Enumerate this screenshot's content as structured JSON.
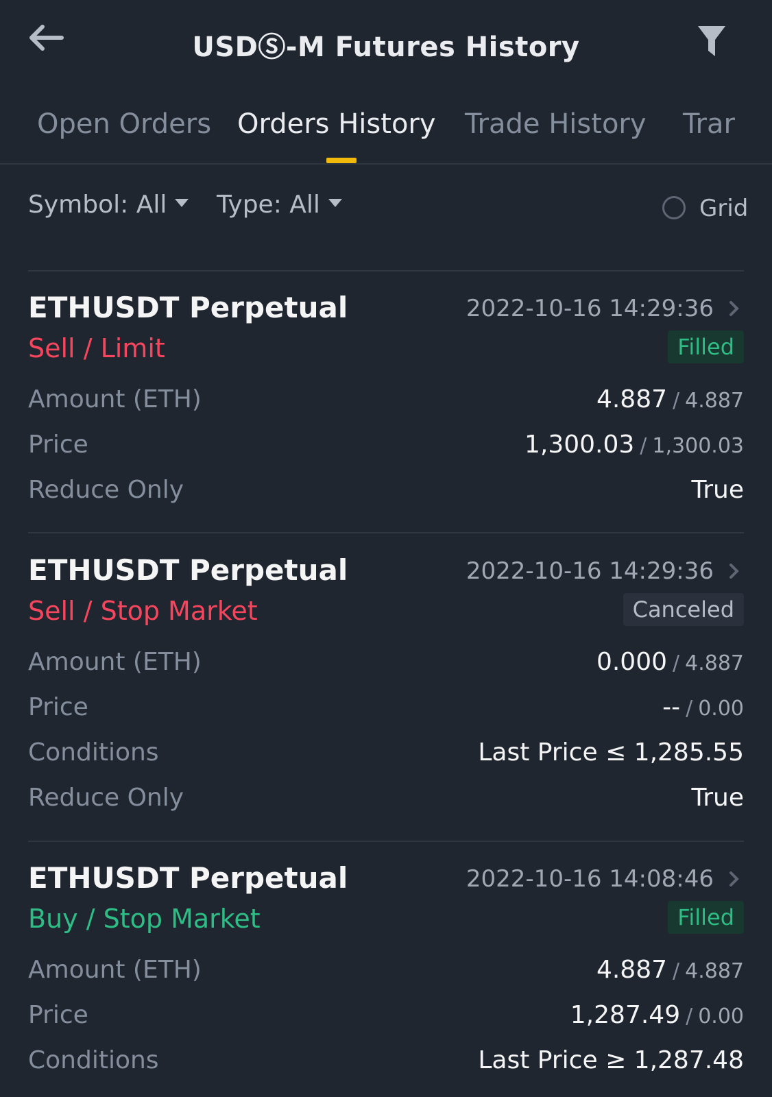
{
  "header": {
    "title": "USDⓈ-M Futures History"
  },
  "tabs": [
    {
      "label": "Open Orders"
    },
    {
      "label": "Orders History"
    },
    {
      "label": "Trade History"
    },
    {
      "label": "Trar"
    }
  ],
  "filters": {
    "symbol_label": "Symbol:",
    "symbol_value": "All",
    "type_label": "Type:",
    "type_value": "All",
    "grid_label": "Grid"
  },
  "colors": {
    "background": "#1f2630",
    "accent": "#f0b90b",
    "sell": "#f6465d",
    "buy": "#2ebd85"
  },
  "orders": [
    {
      "symbol": "ETHUSDT Perpetual",
      "time": "2022-10-16 14:29:36",
      "side": "Sell / Limit",
      "side_type": "sell",
      "status": "Filled",
      "amount_label": "Amount (ETH)",
      "amount_filled": "4.887",
      "amount_total": "4.887",
      "price_label": "Price",
      "price_avg": "1,300.03",
      "price_order": "1,300.03",
      "reduce_label": "Reduce Only",
      "reduce_value": "True"
    },
    {
      "symbol": "ETHUSDT Perpetual",
      "time": "2022-10-16 14:29:36",
      "side": "Sell / Stop Market",
      "side_type": "sell",
      "status": "Canceled",
      "amount_label": "Amount (ETH)",
      "amount_filled": "0.000",
      "amount_total": "4.887",
      "price_label": "Price",
      "price_avg": "--",
      "price_order": "0.00",
      "conditions_label": "Conditions",
      "conditions_value": "Last Price ≤ 1,285.55",
      "reduce_label": "Reduce Only",
      "reduce_value": "True"
    },
    {
      "symbol": "ETHUSDT Perpetual",
      "time": "2022-10-16 14:08:46",
      "side": "Buy / Stop Market",
      "side_type": "buy",
      "status": "Filled",
      "amount_label": "Amount (ETH)",
      "amount_filled": "4.887",
      "amount_total": "4.887",
      "price_label": "Price",
      "price_avg": "1,287.49",
      "price_order": "0.00",
      "conditions_label": "Conditions",
      "conditions_value": "Last Price ≥ 1,287.48"
    }
  ]
}
